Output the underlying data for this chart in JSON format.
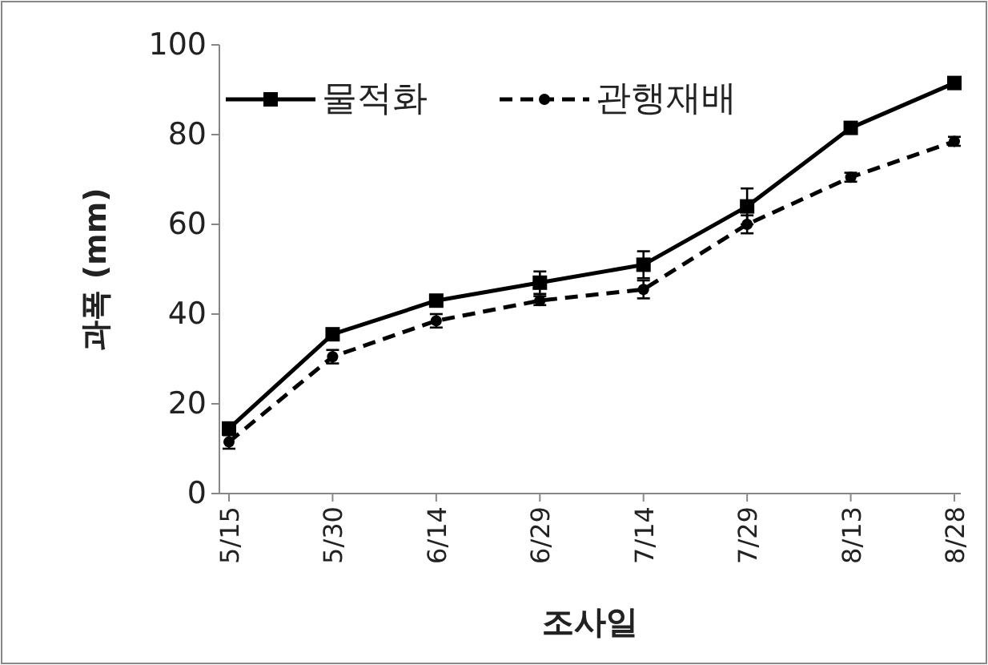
{
  "chart_data": {
    "type": "line",
    "xlabel": "조사일",
    "ylabel": "과폭 (mm)",
    "categories": [
      "5/15",
      "5/30",
      "6/14",
      "6/29",
      "7/14",
      "7/29",
      "8/13",
      "8/28"
    ],
    "series": [
      {
        "name": "물적화",
        "color": "#000000",
        "marker": "square",
        "line_style": "solid",
        "values": [
          14.5,
          35.5,
          43,
          47,
          51,
          64,
          81.5,
          91.5
        ],
        "errors": [
          1,
          1,
          1,
          2.5,
          3,
          4,
          1,
          1
        ]
      },
      {
        "name": "관행재배",
        "color": "#000000",
        "marker": "circle",
        "line_style": "dashed",
        "values": [
          11.5,
          30.5,
          38.5,
          43,
          45.5,
          60,
          70.5,
          78.5
        ],
        "errors": [
          1.5,
          1.5,
          1.5,
          1,
          2,
          2,
          1,
          1
        ]
      }
    ],
    "ylim": [
      0,
      100
    ],
    "yticks": [
      0,
      20,
      40,
      60,
      80,
      100
    ],
    "grid": false,
    "legend": "top left"
  }
}
